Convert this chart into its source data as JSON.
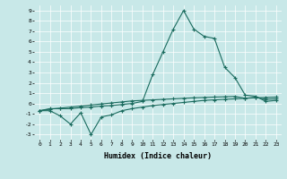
{
  "xlabel": "Humidex (Indice chaleur)",
  "background_color": "#c8e8e8",
  "grid_color": "#ffffff",
  "line_color": "#1a6b5e",
  "xlim": [
    -0.5,
    23.5
  ],
  "ylim": [
    -3.5,
    9.5
  ],
  "xticks": [
    0,
    1,
    2,
    3,
    4,
    5,
    6,
    7,
    8,
    9,
    10,
    11,
    12,
    13,
    14,
    15,
    16,
    17,
    18,
    19,
    20,
    21,
    22,
    23
  ],
  "yticks": [
    -3,
    -2,
    -1,
    0,
    1,
    2,
    3,
    4,
    5,
    6,
    7,
    8,
    9
  ],
  "line1_x": [
    0,
    1,
    2,
    3,
    4,
    5,
    6,
    7,
    8,
    9,
    10,
    11,
    12,
    13,
    14,
    15,
    16,
    17,
    18,
    19,
    20,
    21,
    22,
    23
  ],
  "line1_y": [
    -0.7,
    -0.55,
    -0.45,
    -0.35,
    -0.25,
    -0.15,
    -0.05,
    0.05,
    0.15,
    0.25,
    0.3,
    0.35,
    0.4,
    0.45,
    0.5,
    0.55,
    0.58,
    0.62,
    0.65,
    0.68,
    0.5,
    0.6,
    0.4,
    0.45
  ],
  "line2_x": [
    0,
    1,
    2,
    3,
    4,
    5,
    6,
    7,
    8,
    9,
    10,
    11,
    12,
    13,
    14,
    15,
    16,
    17,
    18,
    19,
    20,
    21,
    22,
    23
  ],
  "line2_y": [
    -0.7,
    -0.5,
    -0.5,
    -0.5,
    -0.4,
    -0.35,
    -0.25,
    -0.2,
    -0.1,
    0.0,
    0.2,
    2.8,
    5.0,
    7.2,
    9.0,
    7.2,
    6.5,
    6.3,
    3.5,
    2.5,
    0.8,
    0.7,
    0.2,
    0.3
  ],
  "line3_x": [
    0,
    1,
    2,
    3,
    4,
    5,
    6,
    7,
    8,
    9,
    10,
    11,
    12,
    13,
    14,
    15,
    16,
    17,
    18,
    19,
    20,
    21,
    22,
    23
  ],
  "line3_y": [
    -0.7,
    -0.7,
    -1.2,
    -2.0,
    -0.9,
    -3.0,
    -1.3,
    -1.1,
    -0.7,
    -0.5,
    -0.35,
    -0.2,
    -0.1,
    0.0,
    0.1,
    0.2,
    0.3,
    0.35,
    0.4,
    0.45,
    0.5,
    0.55,
    0.58,
    0.62
  ]
}
